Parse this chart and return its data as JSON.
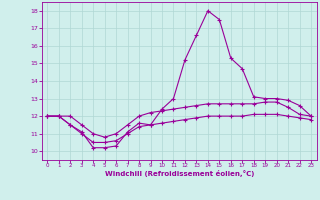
{
  "xlabel": "Windchill (Refroidissement éolien,°C)",
  "bg_color": "#d0efec",
  "grid_color": "#b0d8d4",
  "line_color": "#990099",
  "ylim": [
    9.5,
    18.5
  ],
  "xlim": [
    -0.5,
    23.5
  ],
  "yticks": [
    10,
    11,
    12,
    13,
    14,
    15,
    16,
    17,
    18
  ],
  "xticks": [
    0,
    1,
    2,
    3,
    4,
    5,
    6,
    7,
    8,
    9,
    10,
    11,
    12,
    13,
    14,
    15,
    16,
    17,
    18,
    19,
    20,
    21,
    22,
    23
  ],
  "curve1": [
    12.0,
    12.0,
    11.5,
    11.1,
    10.2,
    10.2,
    10.3,
    11.1,
    11.6,
    11.5,
    12.4,
    13.0,
    15.2,
    16.6,
    18.0,
    17.5,
    15.3,
    14.7,
    13.1,
    13.0,
    13.0,
    12.9,
    12.6,
    12.0
  ],
  "curve2": [
    12.0,
    12.0,
    12.0,
    11.5,
    11.0,
    10.8,
    11.0,
    11.5,
    12.0,
    12.2,
    12.3,
    12.4,
    12.5,
    12.6,
    12.7,
    12.7,
    12.7,
    12.7,
    12.7,
    12.8,
    12.8,
    12.5,
    12.1,
    12.0
  ],
  "curve3": [
    12.0,
    12.0,
    11.5,
    11.0,
    10.5,
    10.5,
    10.6,
    11.0,
    11.4,
    11.5,
    11.6,
    11.7,
    11.8,
    11.9,
    12.0,
    12.0,
    12.0,
    12.0,
    12.1,
    12.1,
    12.1,
    12.0,
    11.9,
    11.8
  ],
  "marker": "+",
  "markersize": 3.5,
  "linewidth": 0.8
}
